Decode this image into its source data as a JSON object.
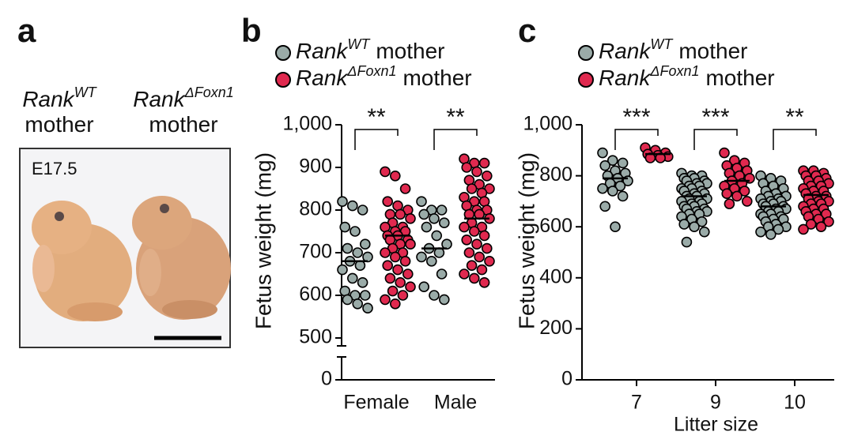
{
  "photo": {
    "label": "a",
    "captions": [
      [
        "Rank",
        "WT",
        "mother"
      ],
      [
        "Rank",
        "ΔFoxn1",
        "mother"
      ]
    ],
    "stage": "E17.5"
  },
  "chart_data": [
    {
      "type": "dot",
      "label": "b",
      "ylabel": "Fetus weight (mg)",
      "categories": [
        "Female",
        "Male"
      ],
      "ylim": [
        0,
        1000
      ],
      "ybreak": [
        0,
        500
      ],
      "yticks": [
        0,
        500,
        600,
        700,
        800,
        900,
        {
          "value": 1000,
          "label": "1,000"
        }
      ],
      "significance": [
        "**",
        "**"
      ],
      "series": [
        {
          "name": [
            "Rank",
            "WT",
            "mother"
          ],
          "color": "#9aaba8",
          "values": [
            [
              820,
              810,
              800,
              760,
              750,
              720,
              710,
              700,
              690,
              680,
              670,
              660,
              640,
              630,
              610,
              600,
              600,
              590,
              580,
              570
            ],
            [
              820,
              800,
              800,
              790,
              780,
              770,
              760,
              740,
              720,
              710,
              700,
              690,
              680,
              650,
              620,
              600,
              590
            ]
          ],
          "means": [
            680,
            710
          ]
        },
        {
          "name": [
            "Rank",
            "ΔFoxn1",
            "mother"
          ],
          "color": "#e0294f",
          "values": [
            [
              890,
              880,
              850,
              820,
              810,
              800,
              790,
              790,
              780,
              770,
              760,
              760,
              750,
              750,
              740,
              740,
              730,
              730,
              720,
              720,
              710,
              700,
              700,
              690,
              680,
              670,
              660,
              650,
              640,
              630,
              620,
              610,
              600,
              590,
              580
            ],
            [
              920,
              910,
              910,
              900,
              890,
              880,
              870,
              860,
              850,
              850,
              840,
              830,
              820,
              820,
              810,
              800,
              800,
              790,
              790,
              780,
              770,
              760,
              760,
              750,
              740,
              730,
              720,
              710,
              700,
              690,
              680,
              670,
              660,
              650,
              640,
              630
            ]
          ],
          "means": [
            740,
            780
          ]
        }
      ]
    },
    {
      "type": "dot",
      "label": "c",
      "ylabel": "Fetus weight (mg)",
      "xlabel": "Litter size",
      "categories": [
        "7",
        "9",
        "10"
      ],
      "ylim": [
        0,
        1000
      ],
      "yticks": [
        0,
        200,
        400,
        600,
        800,
        {
          "value": 1000,
          "label": "1,000"
        }
      ],
      "significance": [
        "***",
        "***",
        "**"
      ],
      "series": [
        {
          "name": [
            "Rank",
            "WT",
            "mother"
          ],
          "color": "#9aaba8",
          "values": [
            [
              890,
              860,
              850,
              840,
              820,
              810,
              800,
              790,
              780,
              770,
              760,
              750,
              740,
              720,
              680,
              600
            ],
            [
              810,
              800,
              800,
              790,
              790,
              780,
              780,
              770,
              770,
              760,
              760,
              750,
              750,
              740,
              740,
              730,
              730,
              720,
              720,
              710,
              710,
              700,
              700,
              690,
              690,
              680,
              680,
              670,
              670,
              660,
              660,
              650,
              650,
              640,
              630,
              620,
              610,
              600,
              580,
              540
            ],
            [
              800,
              790,
              780,
              770,
              760,
              750,
              740,
              730,
              720,
              720,
              710,
              710,
              700,
              700,
              690,
              690,
              680,
              680,
              670,
              670,
              660,
              660,
              650,
              650,
              640,
              640,
              630,
              630,
              620,
              610,
              600,
              600,
              590,
              580,
              570
            ]
          ],
          "means": [
            790,
            720,
            680
          ]
        },
        {
          "name": [
            "Rank",
            "ΔFoxn1",
            "mother"
          ],
          "color": "#e0294f",
          "values": [
            [
              910,
              900,
              890,
              885,
              880,
              875,
              870,
              870
            ],
            [
              890,
              860,
              850,
              840,
              830,
              820,
              810,
              800,
              790,
              780,
              770,
              760,
              750,
              740,
              730,
              720,
              700,
              690
            ],
            [
              820,
              820,
              810,
              800,
              800,
              790,
              780,
              780,
              770,
              760,
              760,
              750,
              740,
              740,
              730,
              720,
              720,
              710,
              700,
              700,
              690,
              690,
              680,
              670,
              670,
              660,
              650,
              650,
              640,
              630,
              620,
              610,
              600,
              590
            ]
          ],
          "means": [
            885,
            780,
            725
          ]
        }
      ]
    }
  ]
}
